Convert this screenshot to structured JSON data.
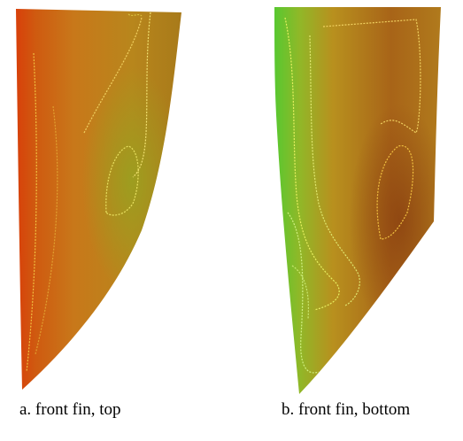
{
  "figure": {
    "panels": [
      {
        "caption": "a. front fin, top"
      },
      {
        "caption": "b. front fin, bottom"
      }
    ]
  }
}
